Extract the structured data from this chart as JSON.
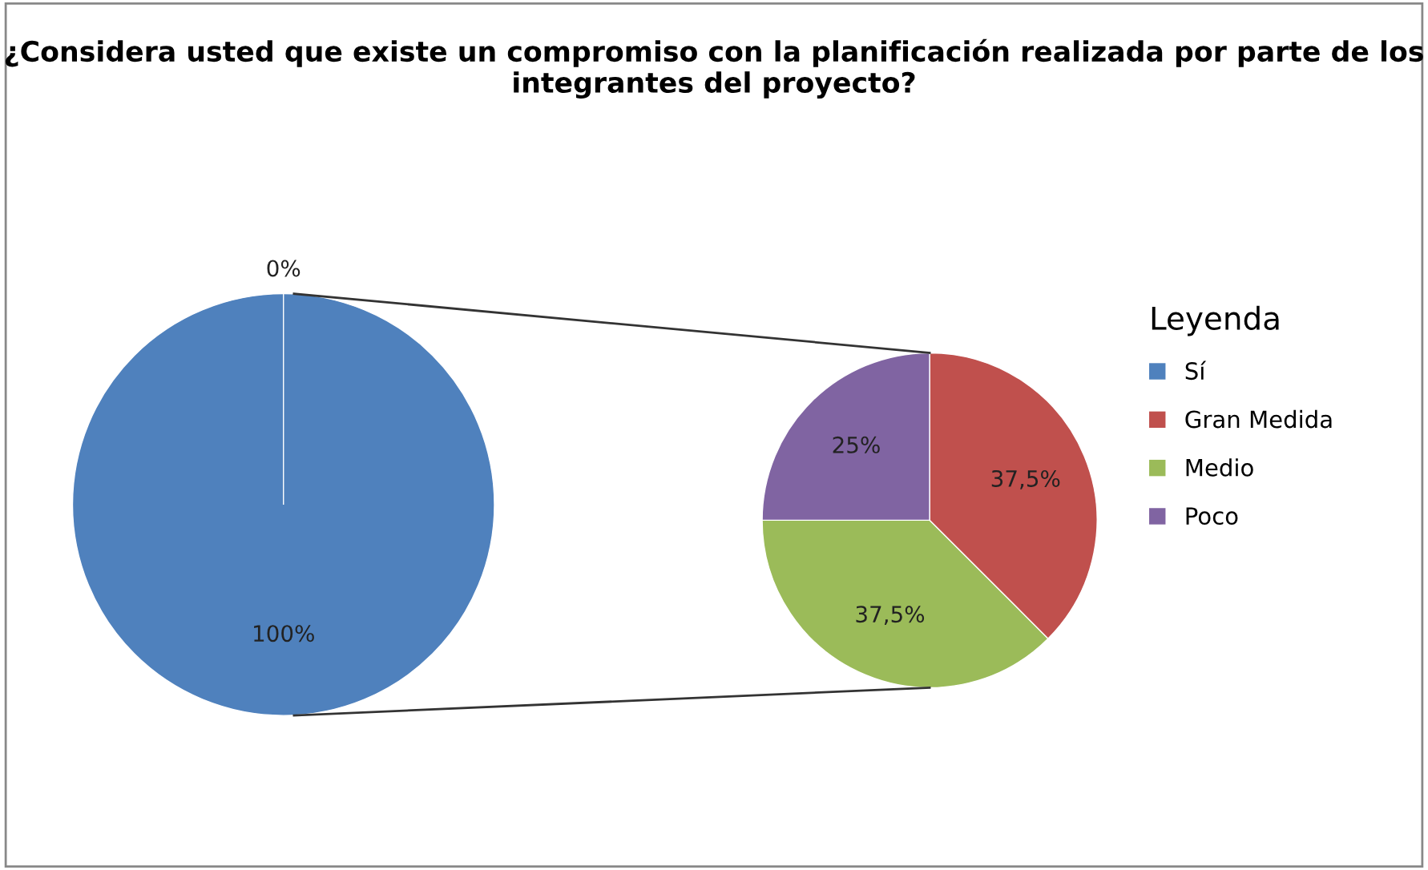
{
  "chart_data": [
    {
      "type": "pie",
      "title": "¿Considera usted que existe un compromiso con la planificación realizada por parte de los integrantes del proyecto?",
      "categories": [
        "Sí",
        null
      ],
      "values": [
        100,
        0
      ],
      "colors": [
        "#4f81bd",
        "#4f81bd"
      ],
      "value_labels": [
        "100%",
        "0%"
      ]
    },
    {
      "type": "pie",
      "categories": [
        "Gran Medida",
        "Medio",
        "Poco"
      ],
      "values": [
        37.5,
        37.5,
        25
      ],
      "colors": [
        "#c0504d",
        "#9bbb59",
        "#8064a2"
      ],
      "value_labels": [
        "37,5%",
        "37,5%",
        "25%"
      ],
      "legend": "right",
      "legend_title": "Leyenda"
    }
  ]
}
